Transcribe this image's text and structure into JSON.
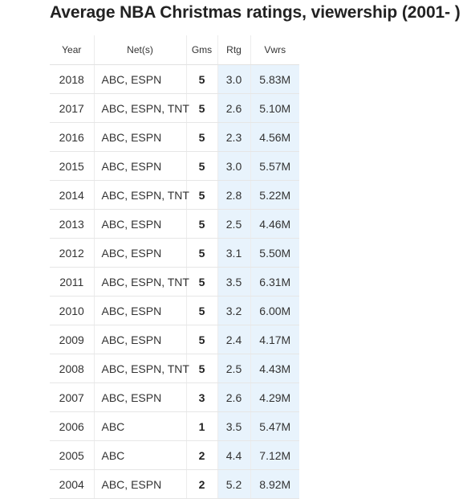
{
  "title": "Average NBA Christmas ratings, viewership (2001- )",
  "table": {
    "headers": {
      "year": "Year",
      "networks": "Net(s)",
      "games": "Gms",
      "rating": "Rtg",
      "viewers": "Vwrs"
    },
    "rows": [
      {
        "year": "2018",
        "networks": "ABC, ESPN",
        "games": "5",
        "rating": "3.0",
        "viewers": "5.83M"
      },
      {
        "year": "2017",
        "networks": "ABC, ESPN, TNT",
        "games": "5",
        "rating": "2.6",
        "viewers": "5.10M"
      },
      {
        "year": "2016",
        "networks": "ABC, ESPN",
        "games": "5",
        "rating": "2.3",
        "viewers": "4.56M"
      },
      {
        "year": "2015",
        "networks": "ABC, ESPN",
        "games": "5",
        "rating": "3.0",
        "viewers": "5.57M"
      },
      {
        "year": "2014",
        "networks": "ABC, ESPN, TNT",
        "games": "5",
        "rating": "2.8",
        "viewers": "5.22M"
      },
      {
        "year": "2013",
        "networks": "ABC, ESPN",
        "games": "5",
        "rating": "2.5",
        "viewers": "4.46M"
      },
      {
        "year": "2012",
        "networks": "ABC, ESPN",
        "games": "5",
        "rating": "3.1",
        "viewers": "5.50M"
      },
      {
        "year": "2011",
        "networks": "ABC, ESPN, TNT",
        "games": "5",
        "rating": "3.5",
        "viewers": "6.31M"
      },
      {
        "year": "2010",
        "networks": "ABC, ESPN",
        "games": "5",
        "rating": "3.2",
        "viewers": "6.00M"
      },
      {
        "year": "2009",
        "networks": "ABC, ESPN",
        "games": "5",
        "rating": "2.4",
        "viewers": "4.17M"
      },
      {
        "year": "2008",
        "networks": "ABC, ESPN, TNT",
        "games": "5",
        "rating": "2.5",
        "viewers": "4.43M"
      },
      {
        "year": "2007",
        "networks": "ABC, ESPN",
        "games": "3",
        "rating": "2.6",
        "viewers": "4.29M"
      },
      {
        "year": "2006",
        "networks": "ABC",
        "games": "1",
        "rating": "3.5",
        "viewers": "5.47M"
      },
      {
        "year": "2005",
        "networks": "ABC",
        "games": "2",
        "rating": "4.4",
        "viewers": "7.12M"
      },
      {
        "year": "2004",
        "networks": "ABC, ESPN",
        "games": "2",
        "rating": "5.2",
        "viewers": "8.92M"
      }
    ]
  },
  "colors": {
    "highlight_column_bg": "#e8f3fc",
    "text": "#222222"
  }
}
